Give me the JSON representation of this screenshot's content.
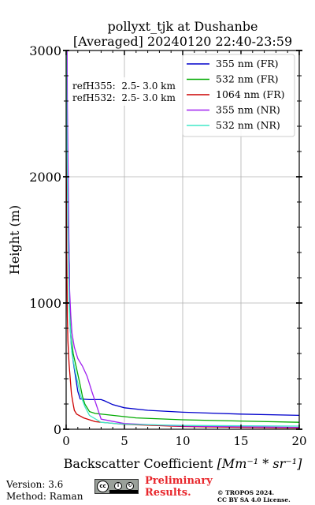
{
  "chart_data": {
    "type": "line",
    "title_line1": "pollyxt_tjk at Dushanbe",
    "title_line2": "[Averaged] 20240120 22:40-23:59",
    "ylabel": "Height (m)",
    "xlabel_prefix": "Backscatter Coefficient ",
    "xlabel_math": "[Mm⁻¹ * sr⁻¹]",
    "xlim": [
      0,
      20
    ],
    "ylim": [
      0,
      3000
    ],
    "x_ticks": [
      0,
      5,
      10,
      15,
      20
    ],
    "x_tick_labels": [
      "0",
      "5",
      "10",
      "15",
      "20"
    ],
    "y_ticks": [
      0,
      1000,
      2000,
      3000
    ],
    "y_tick_labels": [
      "0",
      "1000",
      "2000",
      "3000"
    ],
    "grid": true,
    "legend_position": "top-right",
    "annotations": [
      "refH355:  2.5- 3.0 km",
      "refH532:  2.5- 3.0 km"
    ],
    "series": [
      {
        "name": "355 nm (FR)",
        "color": "#0000cc",
        "points": [
          [
            20,
            110
          ],
          [
            15,
            120
          ],
          [
            10,
            135
          ],
          [
            7,
            150
          ],
          [
            5,
            170
          ],
          [
            4,
            195
          ],
          [
            3.3,
            225
          ],
          [
            3,
            235
          ],
          [
            2,
            235
          ],
          [
            1.2,
            240
          ],
          [
            1,
            300
          ],
          [
            0.8,
            420
          ],
          [
            0.6,
            540
          ],
          [
            0.45,
            650
          ],
          [
            0.35,
            800
          ],
          [
            0.3,
            1000
          ],
          [
            0.28,
            1300
          ],
          [
            0.2,
            1600
          ],
          [
            0.12,
            2000
          ],
          [
            0.08,
            2400
          ],
          [
            0.05,
            2800
          ],
          [
            0.03,
            3000
          ]
        ]
      },
      {
        "name": "532 nm (FR)",
        "color": "#00aa00",
        "points": [
          [
            20,
            55
          ],
          [
            15,
            65
          ],
          [
            10,
            75
          ],
          [
            6,
            90
          ],
          [
            4,
            110
          ],
          [
            2.5,
            125
          ],
          [
            2,
            140
          ],
          [
            1.6,
            200
          ],
          [
            1.4,
            260
          ],
          [
            1.2,
            350
          ],
          [
            0.9,
            480
          ],
          [
            0.6,
            600
          ],
          [
            0.4,
            750
          ],
          [
            0.3,
            950
          ],
          [
            0.25,
            1200
          ],
          [
            0.2,
            1500
          ],
          [
            0.12,
            1900
          ],
          [
            0.08,
            2300
          ],
          [
            0.05,
            2700
          ],
          [
            0.03,
            3000
          ]
        ]
      },
      {
        "name": "1064 nm (FR)",
        "color": "#cc0000",
        "points": [
          [
            20,
            10
          ],
          [
            15,
            15
          ],
          [
            10,
            22
          ],
          [
            5,
            38
          ],
          [
            2.5,
            60
          ],
          [
            1.5,
            90
          ],
          [
            0.9,
            120
          ],
          [
            0.7,
            150
          ],
          [
            0.6,
            200
          ],
          [
            0.45,
            280
          ],
          [
            0.35,
            400
          ],
          [
            0.25,
            520
          ],
          [
            0.15,
            700
          ],
          [
            0.1,
            900
          ],
          [
            0.08,
            1100
          ],
          [
            0.05,
            1400
          ],
          [
            0.03,
            1800
          ],
          [
            0.02,
            2300
          ],
          [
            0.01,
            3000
          ]
        ]
      },
      {
        "name": "355 nm (NR)",
        "color": "#a020f0",
        "points": [
          [
            20,
            15
          ],
          [
            10,
            25
          ],
          [
            5,
            45
          ],
          [
            3,
            80
          ],
          [
            2.2,
            300
          ],
          [
            1.8,
            420
          ],
          [
            1.4,
            500
          ],
          [
            1,
            560
          ],
          [
            0.7,
            650
          ],
          [
            0.5,
            760
          ],
          [
            0.4,
            900
          ],
          [
            0.3,
            1100
          ],
          [
            0.25,
            1400
          ],
          [
            0.2,
            1800
          ],
          [
            0.15,
            2200
          ],
          [
            0.1,
            2600
          ],
          [
            0.08,
            3000
          ]
        ]
      },
      {
        "name": "532 nm (NR)",
        "color": "#40e8c8",
        "points": [
          [
            20,
            25
          ],
          [
            10,
            30
          ],
          [
            5,
            40
          ],
          [
            3,
            55
          ],
          [
            2,
            110
          ],
          [
            1.6,
            180
          ],
          [
            1.2,
            280
          ],
          [
            0.8,
            450
          ],
          [
            0.5,
            600
          ],
          [
            0.35,
            800
          ],
          [
            0.25,
            1000
          ],
          [
            0.2,
            1300
          ],
          [
            0.15,
            1600
          ],
          [
            0.1,
            2000
          ],
          [
            0.06,
            2400
          ],
          [
            0.04,
            2700
          ],
          [
            0.02,
            3000
          ]
        ]
      }
    ]
  },
  "footer": {
    "version": "Version: 3.6",
    "method": "Method: Raman",
    "preliminary_line1": "Preliminary",
    "preliminary_line2": "Results.",
    "copyright_line1": "© TROPOS 2024.",
    "copyright_line2": "CC BY SA 4.0 License."
  }
}
